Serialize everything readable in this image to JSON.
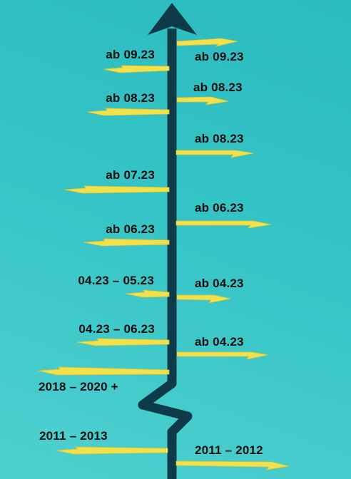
{
  "colors": {
    "trunk": "#0d3b4a",
    "arrow": "#f3e14b",
    "arrow_shade": "#d9c43a",
    "background_top": "#2bbcc0",
    "background_bottom": "#4fd0d0"
  },
  "timeline": {
    "left": [
      {
        "label": "ab 09.23"
      },
      {
        "label": "ab 08.23"
      },
      {
        "label": "ab 07.23"
      },
      {
        "label": "ab 06.23"
      },
      {
        "label": "04.23 – 05.23"
      },
      {
        "label": "04.23 – 06.23"
      },
      {
        "label": "2018 – 2020 +"
      },
      {
        "label": "2011 – 2013"
      }
    ],
    "right": [
      {
        "label": "ab 09.23"
      },
      {
        "label": "ab 08.23"
      },
      {
        "label": "ab 08.23"
      },
      {
        "label": "ab 06.23"
      },
      {
        "label": "ab 04.23"
      },
      {
        "label": "ab 04.23"
      },
      {
        "label": "2011 – 2012"
      }
    ]
  }
}
